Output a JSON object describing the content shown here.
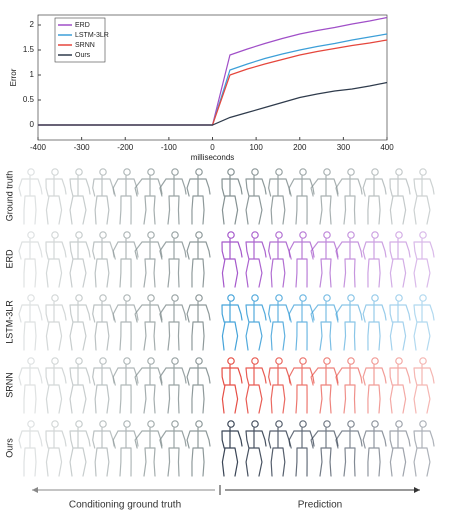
{
  "chart_data": {
    "type": "line",
    "x_label": "milliseconds",
    "y_label": "Error",
    "x": [
      -400,
      0,
      40,
      80,
      120,
      160,
      200,
      240,
      280,
      320,
      360,
      400
    ],
    "series": [
      {
        "name": "ERD",
        "color": "#a04fc8",
        "values": [
          0,
          0,
          1.4,
          1.52,
          1.63,
          1.73,
          1.82,
          1.89,
          1.95,
          2.02,
          2.08,
          2.15
        ]
      },
      {
        "name": "LSTM-3LR",
        "color": "#3c9fd8",
        "values": [
          0,
          0,
          1.1,
          1.22,
          1.33,
          1.42,
          1.5,
          1.57,
          1.63,
          1.7,
          1.76,
          1.82
        ]
      },
      {
        "name": "SRNN",
        "color": "#e5463c",
        "values": [
          0,
          0,
          1.0,
          1.12,
          1.22,
          1.31,
          1.4,
          1.47,
          1.53,
          1.59,
          1.64,
          1.7
        ]
      },
      {
        "name": "Ours",
        "color": "#2f3b4c",
        "values": [
          0,
          0,
          0.15,
          0.25,
          0.35,
          0.45,
          0.55,
          0.62,
          0.68,
          0.72,
          0.78,
          0.85
        ]
      }
    ],
    "xlim": [
      -400,
      400
    ],
    "ylim": [
      -0.3,
      2.2
    ],
    "xticks": [
      -400,
      -300,
      -200,
      -100,
      0,
      100,
      200,
      300,
      400
    ],
    "yticks": [
      0,
      0.5,
      1,
      1.5,
      2
    ],
    "legend": "upper left"
  },
  "figure": {
    "rows": [
      "Ground truth",
      "ERD",
      "LSTM-3LR",
      "SRNN",
      "Ours"
    ],
    "row_color": "#7f8c8d",
    "conditioning": "Conditioning ground truth",
    "prediction": "Prediction"
  }
}
